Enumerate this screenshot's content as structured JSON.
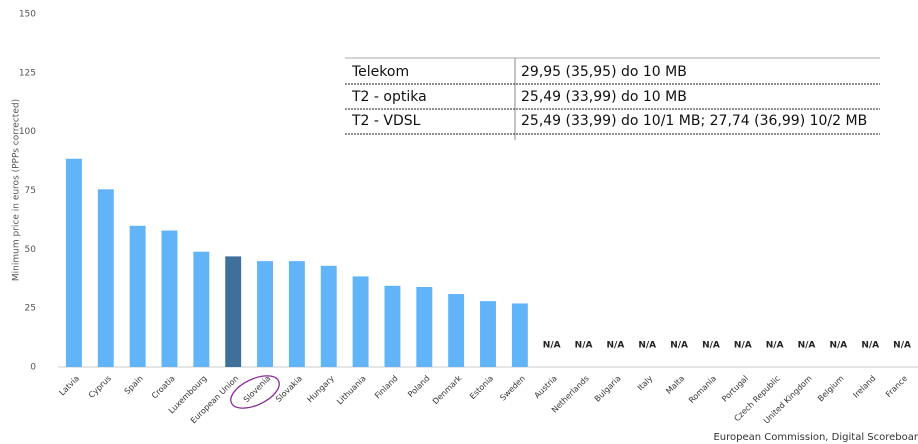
{
  "chart_data": {
    "type": "bar",
    "y_label": "Minimum price in euros (PPPs corrected)",
    "source": "European Commission, Digital Scoreboar",
    "categories": [
      "Latvia",
      "Cyprus",
      "Spain",
      "Croatia",
      "Luxembourg",
      "European Union",
      "Slovenia",
      "Slovakia",
      "Hungary",
      "Lithuania",
      "Finland",
      "Poland",
      "Denmark",
      "Estonia",
      "Sweden",
      "Austria",
      "Netherlands",
      "Bulgaria",
      "Italy",
      "Malta",
      "Romania",
      "Portugal",
      "Czech Republic",
      "United Kingdom",
      "Belgium",
      "Ireland",
      "France"
    ],
    "values": [
      88.5,
      75.5,
      60,
      58,
      49,
      47,
      45,
      45,
      43,
      38.5,
      34.5,
      34,
      31,
      28,
      27,
      null,
      null,
      null,
      null,
      null,
      null,
      null,
      null,
      null,
      null,
      null,
      null
    ],
    "value_labels": [
      null,
      null,
      null,
      null,
      null,
      null,
      null,
      null,
      null,
      null,
      null,
      null,
      null,
      null,
      null,
      "N/A",
      "N/A",
      "N/A",
      "N/A",
      "N/A",
      "N/A",
      "N/A",
      "N/A",
      "N/A",
      "N/A",
      "N/A",
      "N/A"
    ],
    "colors": [
      "#62b4f9",
      "#62b4f9",
      "#62b4f9",
      "#62b4f9",
      "#62b4f9",
      "#3f709c",
      "#62b4f9",
      "#62b4f9",
      "#62b4f9",
      "#62b4f9",
      "#62b4f9",
      "#62b4f9",
      "#62b4f9",
      "#62b4f9",
      "#62b4f9",
      "#62b4f9",
      "#62b4f9",
      "#62b4f9",
      "#62b4f9",
      "#62b4f9",
      "#62b4f9",
      "#62b4f9",
      "#62b4f9",
      "#62b4f9",
      "#62b4f9",
      "#62b4f9",
      "#62b4f9"
    ],
    "ylim": [
      0,
      150
    ],
    "yticks": [
      0,
      25,
      50,
      75,
      100,
      125,
      150
    ],
    "grid": false
  },
  "table": {
    "rows": [
      [
        "Telekom",
        "29,95 (35,95) do 10 MB"
      ],
      [
        "T2 - optika",
        "25,49 (33,99) do 10 MB"
      ],
      [
        "T2 - VDSL",
        "25,49 (33,99) do 10/1 MB; 27,74 (36,99) 10/2 MB"
      ]
    ]
  }
}
